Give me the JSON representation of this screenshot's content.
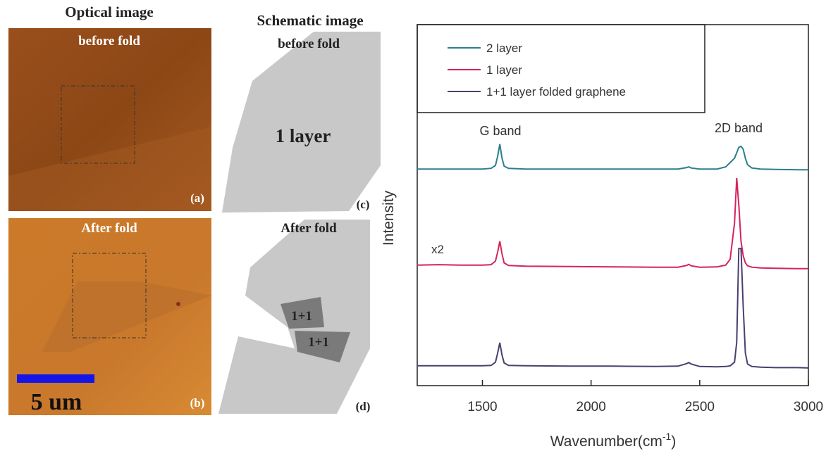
{
  "panels": {
    "a": {
      "title": "Optical image",
      "subtitle": "before fold",
      "label": "(a)"
    },
    "b": {
      "subtitle": "After fold",
      "label": "(b)",
      "scale": "5 um"
    },
    "c": {
      "title": "Schematic image",
      "subtitle": "before fold",
      "text": "1 layer",
      "label": "(c)"
    },
    "d": {
      "subtitle": "After fold",
      "texts": [
        "1+1",
        "1+1"
      ],
      "label": "(d)"
    }
  },
  "chart_data": {
    "type": "line",
    "ylabel": "Intensity",
    "xlabel_parts": [
      "Wavenumber(cm",
      "-1",
      ")"
    ],
    "annotations": [
      "G band",
      "2D band",
      "x2"
    ],
    "x": [
      1200,
      1300,
      1400,
      1500,
      1540,
      1560,
      1570,
      1580,
      1590,
      1600,
      1620,
      1700,
      1900,
      2100,
      2300,
      2400,
      2440,
      2450,
      2460,
      2500,
      2580,
      2620,
      2640,
      2660,
      2670,
      2680,
      2690,
      2700,
      2710,
      2720,
      2740,
      2780,
      2850,
      2950,
      3000
    ],
    "series": [
      {
        "name": "2 layer",
        "color": "#2a7f8e",
        "values": [
          60,
          60,
          60,
          60,
          60.2,
          61,
          63.5,
          66.9,
          63,
          60.8,
          60.2,
          60,
          60,
          60,
          60,
          60,
          60.4,
          60.6,
          60.3,
          60,
          60,
          60.6,
          61.8,
          63,
          64.5,
          66,
          66.3,
          65.5,
          63,
          61.2,
          60.3,
          60,
          59.9,
          59.8,
          59.8
        ]
      },
      {
        "name": "1 layer",
        "color": "#d6245a",
        "values": [
          33.4,
          33.5,
          33.4,
          33.4,
          33.5,
          34.5,
          37,
          40,
          36.5,
          34,
          33.3,
          33.1,
          33,
          32.9,
          32.8,
          32.8,
          33.3,
          33.6,
          33.2,
          32.8,
          32.9,
          33.4,
          35,
          45,
          57.5,
          50,
          40,
          36,
          34,
          33.2,
          32.8,
          32.6,
          32.5,
          32.4,
          32.4
        ]
      },
      {
        "name": "1+1 layer folded graphene",
        "color": "#4b3f6e",
        "values": [
          5.5,
          5.5,
          5.5,
          5.5,
          5.6,
          6.5,
          9,
          11.9,
          8.5,
          6.3,
          5.6,
          5.5,
          5.4,
          5.4,
          5.3,
          5.4,
          6.1,
          6.4,
          6,
          5.3,
          5.2,
          5.3,
          5.5,
          6.5,
          12,
          38,
          38,
          22,
          9,
          6,
          5.3,
          5.1,
          5,
          5,
          4.9
        ]
      }
    ],
    "xlim": [
      1200,
      3000
    ],
    "ylim": [
      0,
      100
    ],
    "xticks": [
      1500,
      2000,
      2500,
      3000
    ]
  }
}
